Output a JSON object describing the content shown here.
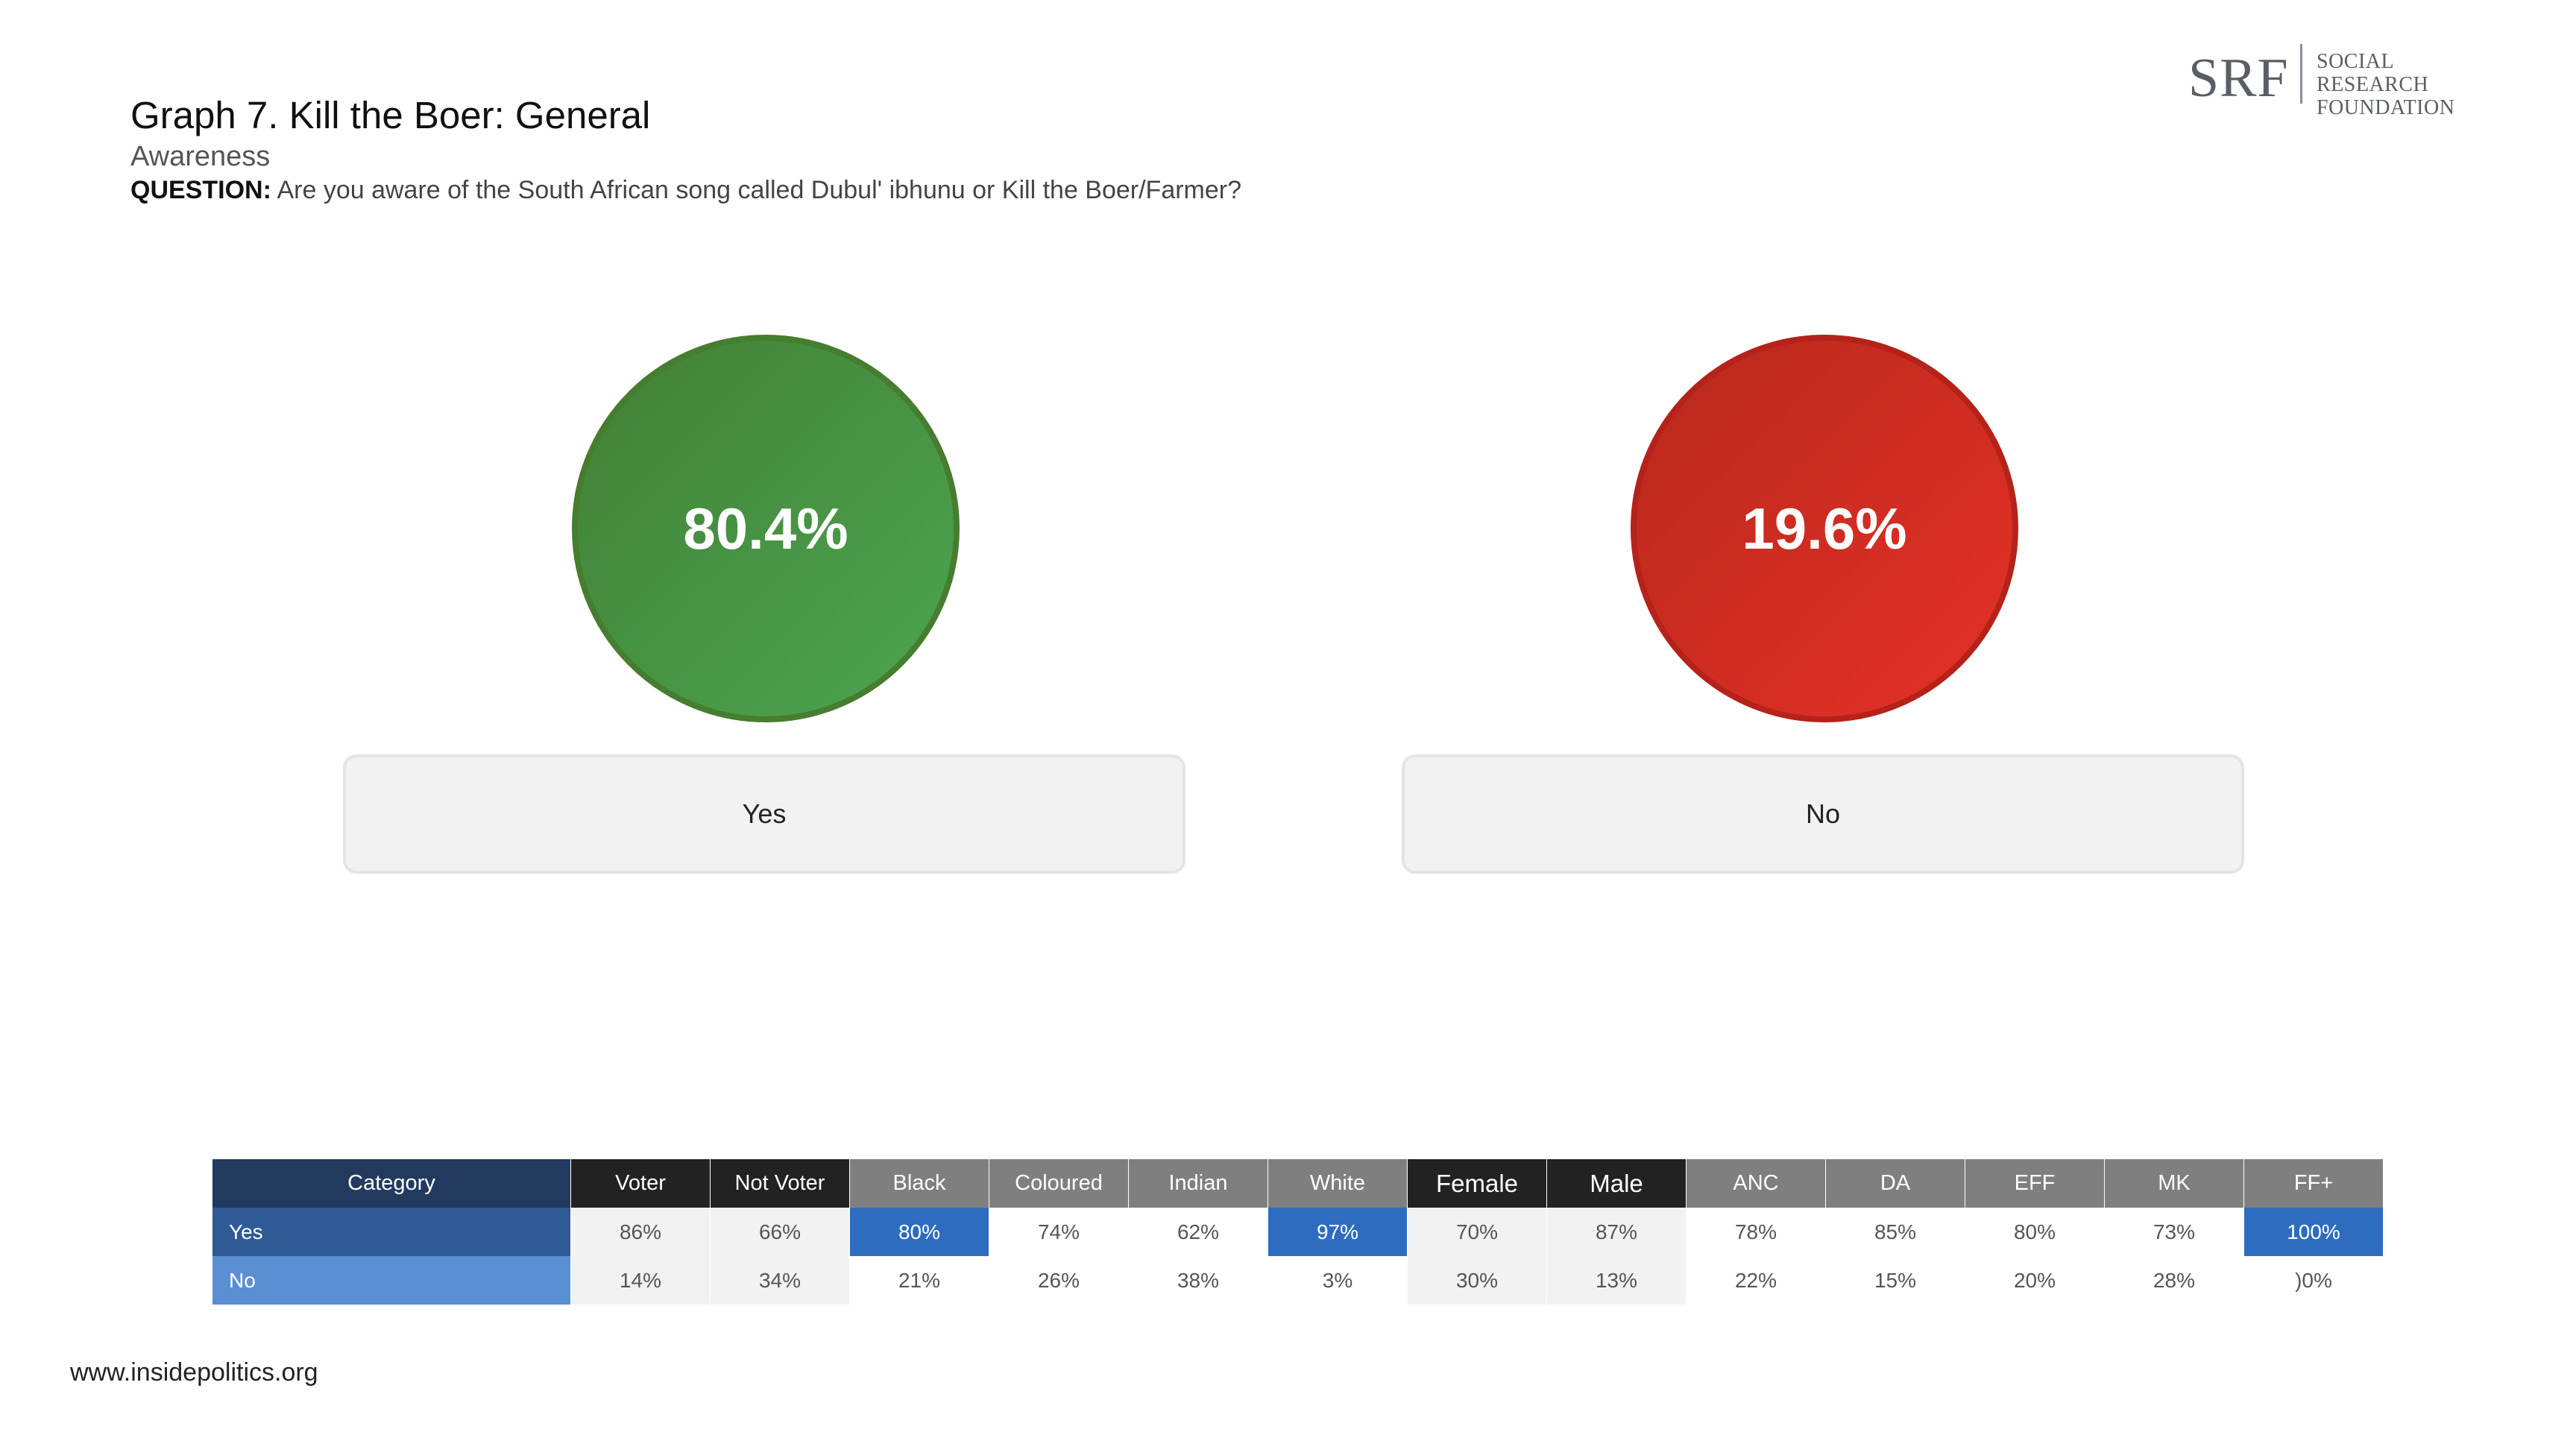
{
  "header": {
    "title": "Graph 7. Kill the Boer: General",
    "subtitle": "Awareness",
    "question_label": "QUESTION:",
    "question_text": " Are you aware of the South African song called Dubul' ibhunu or Kill the Boer/Farmer?"
  },
  "logo": {
    "mark": "SRF",
    "line1": "SOCIAL RESEARCH",
    "line2": "FOUNDATION"
  },
  "chart_data": [
    {
      "type": "bubble",
      "categories": [
        "Yes",
        "No"
      ],
      "values": [
        80.4,
        19.6
      ],
      "value_labels": [
        "80.4%",
        "19.6%"
      ],
      "colors": [
        "#4a9a45",
        "#d92b22"
      ]
    },
    {
      "type": "table",
      "header_label": "Category",
      "columns": [
        "Voter",
        "Not Voter",
        "Black",
        "Coloured",
        "Indian",
        "White",
        "Female",
        "Male",
        "ANC",
        "DA",
        "EFF",
        "MK",
        "FF+"
      ],
      "rows": [
        {
          "label": "Yes",
          "values": [
            "86%",
            "66%",
            "80%",
            "74%",
            "62%",
            "97%",
            "70%",
            "87%",
            "78%",
            "85%",
            "80%",
            "73%",
            "100%"
          ]
        },
        {
          "label": "No",
          "values": [
            "14%",
            "34%",
            "21%",
            "26%",
            "38%",
            "3%",
            "30%",
            "13%",
            "22%",
            "15%",
            "20%",
            "28%",
            ")0%"
          ]
        }
      ],
      "highlighted_cells": [
        [
          "Yes",
          "Black"
        ],
        [
          "Yes",
          "White"
        ],
        [
          "Yes",
          "FF+"
        ]
      ],
      "highlight_color": "#2e6cc0"
    }
  ],
  "footer": {
    "url": "www.insidepolitics.org"
  }
}
